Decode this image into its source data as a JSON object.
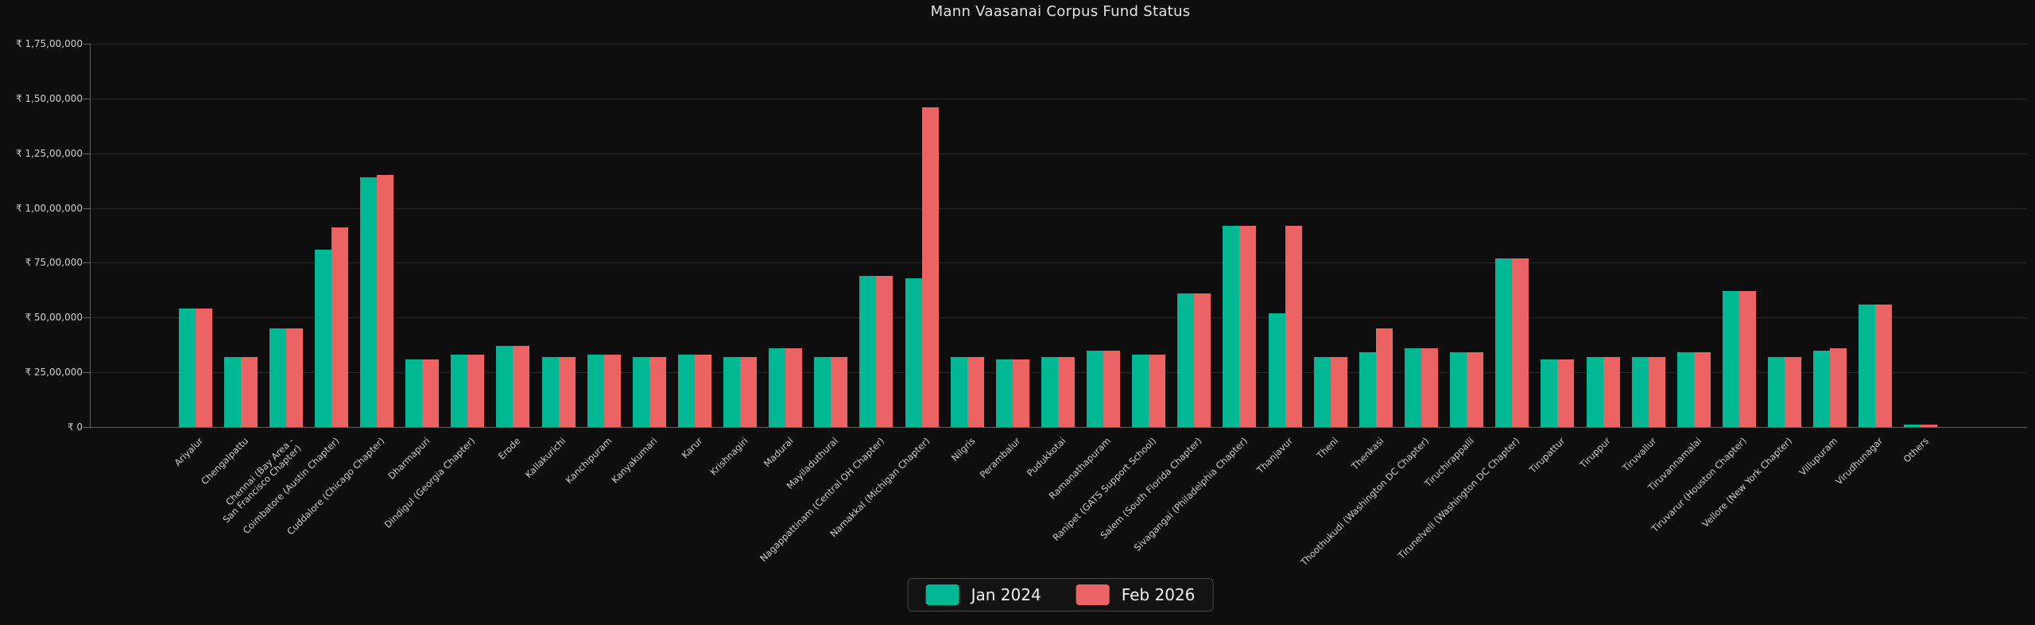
{
  "title": "Mann Vaasanai Corpus Fund Status",
  "colors": {
    "background": "#0e0e0e",
    "grid": "#272727",
    "axis": "#7d7d7d",
    "text": "#cfcfcf",
    "title": "#e4e4e4",
    "series_jan_2024": "#00b894",
    "series_feb_2026": "#ec6363"
  },
  "legend": {
    "items": [
      {
        "label": "Jan 2024",
        "color": "#00b894"
      },
      {
        "label": "Feb 2026",
        "color": "#ec6363"
      }
    ]
  },
  "chart_data": {
    "type": "bar",
    "title": "Mann Vaasanai Corpus Fund Status",
    "xlabel": "",
    "ylabel": "",
    "ylim": [
      0,
      17500000
    ],
    "y_tick_step": 2500000,
    "y_tick_labels": [
      "₹ 0",
      "₹ 25,00,000",
      "₹ 50,00,000",
      "₹ 75,00,000",
      "₹ 1,00,00,000",
      "₹ 1,25,00,000",
      "₹ 1,50,00,000",
      "₹ 1,75,00,000"
    ],
    "grid": true,
    "legend_position": "bottom",
    "currency_prefix": "₹",
    "categories": [
      "Ariyalur",
      "Chengalpattu",
      "Chennai (Bay Area -\nSan Francisco Chapter)",
      "Coimbatore (Austin Chapter)",
      "Cuddalore (Chicago Chapter)",
      "Dharmapuri",
      "Dindigul (Georgia Chapter)",
      "Erode",
      "Kallakurichi",
      "Kanchipuram",
      "Kanyakumari",
      "Karur",
      "Krishnagiri",
      "Madurai",
      "Mayiladuthurai",
      "Nagappattinam (Central OH Chapter)",
      "Namakkal (Michigan Chapter)",
      "Nilgris",
      "Perambalur",
      "Pudukkotai",
      "Ramanathapuram",
      "Ranipet (GATS Support School)",
      "Salem (South Florida Chapter)",
      "Sivagangai (Philadelphia Chapter)",
      "Thanjavur",
      "Theni",
      "Thenkasi",
      "Thoothukudi (Washington DC Chapter)",
      "Tiruchirappalli",
      "Tirunelveli (Washington DC Chapter)",
      "Tirupattur",
      "Tiruppur",
      "Tiruvallur",
      "Tiruvannamalai",
      "Tiruvarur (Houston Chapter)",
      "Vellore (New York Chapter)",
      "Villupuram",
      "Virudhunagar",
      "Others"
    ],
    "series": [
      {
        "name": "Jan 2024",
        "color": "#00b894",
        "values": [
          5400000,
          3200000,
          4500000,
          8100000,
          11400000,
          3100000,
          3300000,
          3700000,
          3200000,
          3300000,
          3200000,
          3300000,
          3200000,
          3600000,
          3200000,
          6900000,
          6800000,
          3200000,
          3100000,
          3200000,
          3500000,
          3300000,
          6100000,
          9200000,
          5200000,
          3200000,
          3400000,
          3600000,
          3400000,
          7700000,
          3100000,
          3200000,
          3200000,
          3400000,
          6200000,
          3200000,
          3500000,
          5600000,
          100000
        ]
      },
      {
        "name": "Feb 2026",
        "color": "#ec6363",
        "values": [
          5400000,
          3200000,
          4500000,
          9100000,
          11500000,
          3100000,
          3300000,
          3700000,
          3200000,
          3300000,
          3200000,
          3300000,
          3200000,
          3600000,
          3200000,
          6900000,
          14600000,
          3200000,
          3100000,
          3200000,
          3500000,
          3300000,
          6100000,
          9200000,
          9200000,
          3200000,
          4500000,
          3600000,
          3400000,
          7700000,
          3100000,
          3200000,
          3200000,
          3400000,
          6200000,
          3200000,
          3600000,
          5600000,
          100000
        ]
      }
    ]
  }
}
